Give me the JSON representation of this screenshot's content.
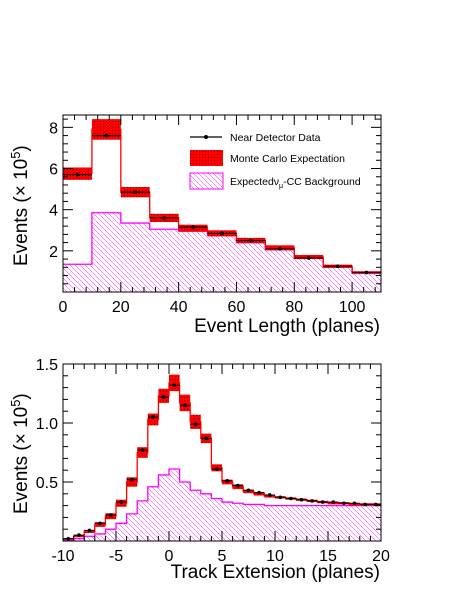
{
  "chart_data": [
    {
      "type": "bar",
      "xlabel": "Event Length (planes)",
      "ylabel": "Events (× 10",
      "ylabel_exp": "5",
      "ylabel_close": ")",
      "xlim": [
        0,
        110
      ],
      "ylim": [
        0,
        8.6
      ],
      "xticks": [
        0,
        20,
        40,
        60,
        80,
        100
      ],
      "xtick_labels": [
        "0",
        "20",
        "40",
        "60",
        "80",
        "100"
      ],
      "yticks": [
        2,
        4,
        6,
        8
      ],
      "ytick_labels": [
        "2",
        "4",
        "6",
        "8"
      ],
      "bin_edges": [
        0,
        10,
        20,
        30,
        40,
        50,
        60,
        70,
        80,
        90,
        100,
        110
      ],
      "series": [
        {
          "name": "Near Detector Data",
          "kind": "data",
          "values": [
            5.7,
            7.6,
            4.85,
            3.6,
            3.15,
            2.85,
            2.5,
            2.1,
            1.65,
            1.25,
            0.95
          ]
        },
        {
          "name": "Monte Carlo Expectation",
          "kind": "mc",
          "values": [
            5.75,
            7.9,
            4.85,
            3.6,
            3.1,
            2.85,
            2.5,
            2.15,
            1.7,
            1.25,
            0.95
          ],
          "band": [
            0.3,
            0.5,
            0.25,
            0.2,
            0.17,
            0.15,
            0.13,
            0.12,
            0.1,
            0.08,
            0.06
          ]
        },
        {
          "name": "Expected",
          "kind": "bkg",
          "values": [
            1.35,
            3.85,
            3.35,
            3.05,
            2.95,
            2.75,
            2.4,
            2.05,
            1.65,
            1.2,
            0.9
          ]
        }
      ],
      "legend": {
        "placement": "top-right",
        "entries": [
          {
            "label": "Near Detector Data",
            "kind": "data"
          },
          {
            "label": "Monte Carlo Expectation",
            "kind": "mc"
          },
          {
            "label": "Expected",
            "sym": "ν",
            "sub": "μ",
            "suffix": "-CC Background",
            "kind": "bkg"
          }
        ]
      },
      "colors": {
        "mc": "#ff0000",
        "bkg": "#ff00ff",
        "data": "#000000"
      }
    },
    {
      "type": "bar",
      "xlabel": "Track Extension (planes)",
      "ylabel": "Events (× 10",
      "ylabel_exp": "5",
      "ylabel_close": ")",
      "xlim": [
        -10,
        20
      ],
      "ylim": [
        0,
        1.5
      ],
      "xticks": [
        -10,
        -5,
        0,
        5,
        10,
        15,
        20
      ],
      "xtick_labels": [
        "-10",
        "-5",
        "0",
        "5",
        "10",
        "15",
        "20"
      ],
      "yticks": [
        0.5,
        1.0,
        1.5
      ],
      "ytick_labels": [
        "0.5",
        "1.0",
        "1.5"
      ],
      "bin_edges": [
        -10,
        -9,
        -8,
        -7,
        -6,
        -5,
        -4,
        -3,
        -2,
        -1,
        0,
        1,
        2,
        3,
        4,
        5,
        6,
        7,
        8,
        9,
        10,
        11,
        12,
        13,
        14,
        15,
        16,
        17,
        18,
        19,
        20
      ],
      "series": [
        {
          "name": "Near Detector Data",
          "kind": "data",
          "values": [
            0.02,
            0.05,
            0.09,
            0.15,
            0.22,
            0.33,
            0.52,
            0.77,
            1.05,
            1.22,
            1.32,
            1.15,
            0.99,
            0.87,
            0.61,
            0.51,
            0.47,
            0.43,
            0.41,
            0.39,
            0.37,
            0.36,
            0.35,
            0.34,
            0.33,
            0.33,
            0.32,
            0.32,
            0.31,
            0.31
          ]
        },
        {
          "name": "Monte Carlo Expectation",
          "kind": "mc",
          "values": [
            0.02,
            0.04,
            0.08,
            0.14,
            0.21,
            0.32,
            0.5,
            0.75,
            1.03,
            1.23,
            1.34,
            1.17,
            1.01,
            0.87,
            0.62,
            0.5,
            0.46,
            0.42,
            0.4,
            0.38,
            0.37,
            0.36,
            0.35,
            0.34,
            0.33,
            0.32,
            0.32,
            0.31,
            0.31,
            0.31
          ],
          "band": [
            0.005,
            0.008,
            0.012,
            0.02,
            0.025,
            0.03,
            0.04,
            0.045,
            0.05,
            0.06,
            0.07,
            0.07,
            0.06,
            0.04,
            0.03,
            0.02,
            0.02,
            0.015,
            0.015,
            0.012,
            0.01,
            0.01,
            0.01,
            0.01,
            0.01,
            0.01,
            0.01,
            0.01,
            0.01,
            0.01
          ]
        },
        {
          "name": "Expected",
          "kind": "bkg",
          "values": [
            0.01,
            0.02,
            0.04,
            0.06,
            0.1,
            0.15,
            0.23,
            0.34,
            0.46,
            0.56,
            0.61,
            0.5,
            0.43,
            0.4,
            0.36,
            0.33,
            0.32,
            0.31,
            0.31,
            0.3,
            0.3,
            0.3,
            0.3,
            0.3,
            0.3,
            0.3,
            0.3,
            0.3,
            0.3,
            0.3
          ]
        }
      ],
      "colors": {
        "mc": "#ff0000",
        "bkg": "#ff00ff",
        "data": "#000000"
      }
    }
  ]
}
